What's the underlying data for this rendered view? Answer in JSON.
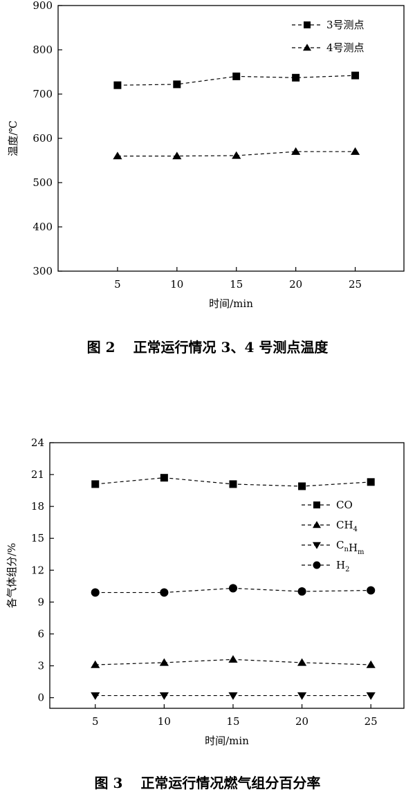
{
  "chart_data": [
    {
      "type": "line",
      "x": [
        5,
        10,
        15,
        20,
        25
      ],
      "xlabel": "时间/min",
      "ylabel": "温度/℃",
      "xticks": [
        "5",
        "10",
        "15",
        "20",
        "25"
      ],
      "yticks": [
        "300",
        "400",
        "500",
        "600",
        "700",
        "800",
        "900"
      ],
      "ylim": [
        300,
        900
      ],
      "grid": false,
      "legend_position": "top-right",
      "series": [
        {
          "name": "3号测点",
          "marker": "square",
          "values": [
            720,
            722,
            740,
            737,
            742
          ]
        },
        {
          "name": "4号测点",
          "marker": "triangle-up",
          "values": [
            560,
            560,
            561,
            570,
            570
          ]
        }
      ],
      "caption_figure": "图 2",
      "caption_text": "正常运行情况 3、4 号测点温度"
    },
    {
      "type": "line",
      "x": [
        5,
        10,
        15,
        20,
        25
      ],
      "xlabel": "时间/min",
      "ylabel": "各气体组分/%",
      "xticks": [
        "5",
        "10",
        "15",
        "20",
        "25"
      ],
      "yticks": [
        "0",
        "3",
        "6",
        "9",
        "12",
        "15",
        "18",
        "21",
        "24"
      ],
      "ylim": [
        -1,
        24
      ],
      "grid": false,
      "legend_position": "right",
      "series": [
        {
          "name": "CO",
          "name_main": "CO",
          "name_parts": [
            [
              "CO",
              ""
            ]
          ],
          "marker": "square",
          "values": [
            20.1,
            20.7,
            20.1,
            19.9,
            20.3
          ]
        },
        {
          "name": "CH4",
          "name_parts": [
            [
              "CH",
              "4"
            ]
          ],
          "marker": "triangle-up",
          "values": [
            3.1,
            3.3,
            3.6,
            3.3,
            3.1
          ]
        },
        {
          "name": "CnHm",
          "name_parts": [
            [
              "C",
              "n"
            ],
            [
              "H",
              "m"
            ]
          ],
          "marker": "triangle-down",
          "values": [
            0.2,
            0.2,
            0.2,
            0.2,
            0.2
          ]
        },
        {
          "name": "H2",
          "name_parts": [
            [
              "H",
              "2"
            ]
          ],
          "marker": "circle",
          "values": [
            9.9,
            9.9,
            10.3,
            10.0,
            10.1
          ]
        }
      ],
      "caption_figure": "图 3",
      "caption_text": "正常运行情况燃气组分百分率"
    }
  ]
}
